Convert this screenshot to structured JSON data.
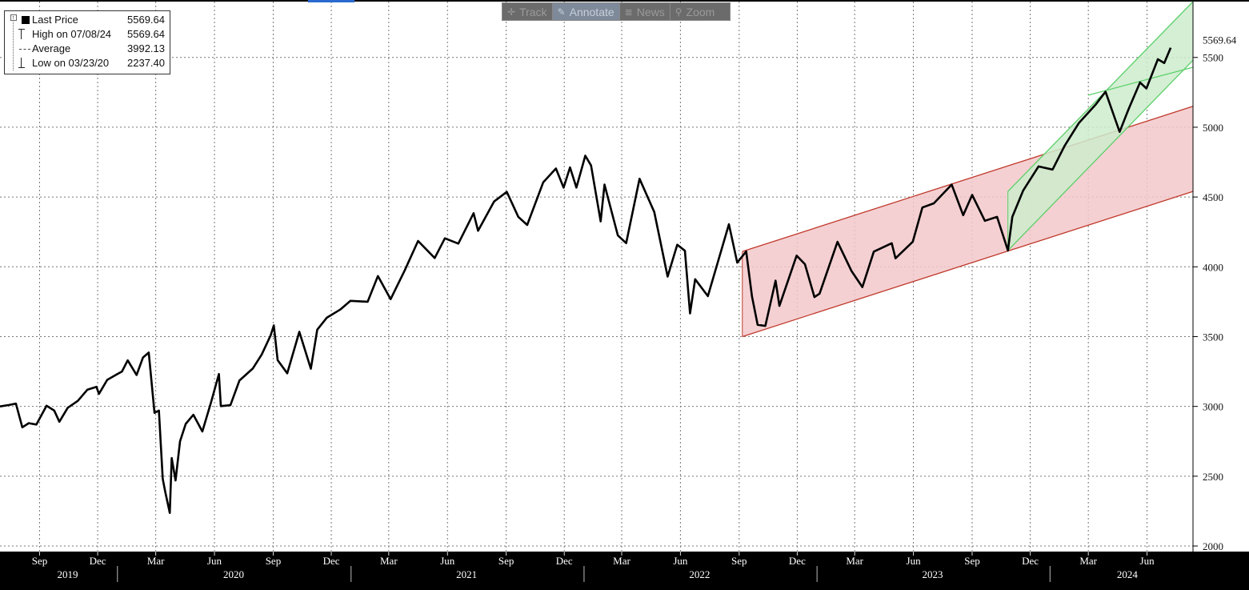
{
  "toolbar": {
    "track": {
      "label": "Track",
      "icon": "crosshair-icon"
    },
    "annotate": {
      "label": "Annotate",
      "icon": "pencil-icon"
    },
    "news": {
      "label": "News",
      "icon": "news-icon"
    },
    "zoom": {
      "label": "Zoom",
      "icon": "magnifier-icon"
    }
  },
  "legend": {
    "last": {
      "label": "Last Price",
      "value": "5569.64"
    },
    "high": {
      "label": "High on 07/08/24",
      "value": "5569.64"
    },
    "average": {
      "label": "Average",
      "value": "3992.13"
    },
    "low": {
      "label": "Low on 03/23/20",
      "value": "2237.40"
    }
  },
  "last_price_tag": "5569.64",
  "chart_data": {
    "type": "line",
    "y_ticks": [
      "2000",
      "2500",
      "3000",
      "3500",
      "4000",
      "4500",
      "5000",
      "5500"
    ],
    "ylim": [
      1960,
      5900
    ],
    "xlim": [
      "2019-07-01",
      "2024-08-12"
    ],
    "grid": true,
    "x_month_ticks": [
      {
        "date": "2019-09-01",
        "label": "Sep"
      },
      {
        "date": "2019-12-01",
        "label": "Dec"
      },
      {
        "date": "2020-03-01",
        "label": "Mar"
      },
      {
        "date": "2020-06-01",
        "label": "Jun"
      },
      {
        "date": "2020-09-01",
        "label": "Sep"
      },
      {
        "date": "2020-12-01",
        "label": "Dec"
      },
      {
        "date": "2021-03-01",
        "label": "Mar"
      },
      {
        "date": "2021-06-01",
        "label": "Jun"
      },
      {
        "date": "2021-09-01",
        "label": "Sep"
      },
      {
        "date": "2021-12-01",
        "label": "Dec"
      },
      {
        "date": "2022-03-01",
        "label": "Mar"
      },
      {
        "date": "2022-06-01",
        "label": "Jun"
      },
      {
        "date": "2022-09-01",
        "label": "Sep"
      },
      {
        "date": "2022-12-01",
        "label": "Dec"
      },
      {
        "date": "2023-03-01",
        "label": "Mar"
      },
      {
        "date": "2023-06-01",
        "label": "Jun"
      },
      {
        "date": "2023-09-01",
        "label": "Sep"
      },
      {
        "date": "2023-12-01",
        "label": "Dec"
      },
      {
        "date": "2024-03-01",
        "label": "Mar"
      },
      {
        "date": "2024-06-01",
        "label": "Jun"
      }
    ],
    "x_year_labels": [
      {
        "date": "2019-10-15",
        "label": "2019"
      },
      {
        "date": "2020-07-01",
        "label": "2020"
      },
      {
        "date": "2021-07-01",
        "label": "2021"
      },
      {
        "date": "2022-07-01",
        "label": "2022"
      },
      {
        "date": "2023-07-01",
        "label": "2023"
      },
      {
        "date": "2024-05-01",
        "label": "2024"
      }
    ],
    "year_separators": [
      "2020-01-01",
      "2021-01-01",
      "2022-01-01",
      "2023-01-01",
      "2024-01-01"
    ],
    "series": [
      {
        "color": "#000000",
        "points": [
          [
            "2019-07-01",
            3000
          ],
          [
            "2019-07-15",
            3010
          ],
          [
            "2019-07-26",
            3020
          ],
          [
            "2019-08-05",
            2850
          ],
          [
            "2019-08-15",
            2880
          ],
          [
            "2019-08-27",
            2870
          ],
          [
            "2019-09-12",
            3005
          ],
          [
            "2019-09-24",
            2970
          ],
          [
            "2019-10-02",
            2890
          ],
          [
            "2019-10-15",
            2990
          ],
          [
            "2019-10-31",
            3040
          ],
          [
            "2019-11-15",
            3120
          ],
          [
            "2019-11-29",
            3140
          ],
          [
            "2019-12-03",
            3090
          ],
          [
            "2019-12-16",
            3190
          ],
          [
            "2019-12-31",
            3230
          ],
          [
            "2020-01-08",
            3250
          ],
          [
            "2020-01-17",
            3330
          ],
          [
            "2020-01-31",
            3225
          ],
          [
            "2020-02-10",
            3350
          ],
          [
            "2020-02-19",
            3386
          ],
          [
            "2020-02-28",
            2954
          ],
          [
            "2020-03-06",
            2970
          ],
          [
            "2020-03-12",
            2480
          ],
          [
            "2020-03-16",
            2386
          ],
          [
            "2020-03-23",
            2237
          ],
          [
            "2020-03-26",
            2630
          ],
          [
            "2020-04-01",
            2470
          ],
          [
            "2020-04-08",
            2750
          ],
          [
            "2020-04-17",
            2875
          ],
          [
            "2020-04-29",
            2940
          ],
          [
            "2020-05-13",
            2820
          ],
          [
            "2020-05-27",
            3036
          ],
          [
            "2020-06-08",
            3232
          ],
          [
            "2020-06-11",
            3002
          ],
          [
            "2020-06-26",
            3009
          ],
          [
            "2020-07-10",
            3185
          ],
          [
            "2020-07-31",
            3271
          ],
          [
            "2020-08-14",
            3372
          ],
          [
            "2020-08-28",
            3508
          ],
          [
            "2020-09-02",
            3580
          ],
          [
            "2020-09-08",
            3331
          ],
          [
            "2020-09-23",
            3237
          ],
          [
            "2020-10-12",
            3534
          ],
          [
            "2020-10-30",
            3270
          ],
          [
            "2020-11-09",
            3550
          ],
          [
            "2020-11-24",
            3635
          ],
          [
            "2020-12-15",
            3694
          ],
          [
            "2020-12-31",
            3756
          ],
          [
            "2021-01-27",
            3750
          ],
          [
            "2021-02-12",
            3934
          ],
          [
            "2021-03-04",
            3768
          ],
          [
            "2021-03-26",
            3974
          ],
          [
            "2021-04-16",
            4185
          ],
          [
            "2021-05-12",
            4063
          ],
          [
            "2021-05-28",
            4204
          ],
          [
            "2021-06-18",
            4166
          ],
          [
            "2021-07-12",
            4384
          ],
          [
            "2021-07-19",
            4258
          ],
          [
            "2021-08-13",
            4468
          ],
          [
            "2021-09-02",
            4537
          ],
          [
            "2021-09-20",
            4358
          ],
          [
            "2021-10-04",
            4300
          ],
          [
            "2021-10-29",
            4605
          ],
          [
            "2021-11-18",
            4704
          ],
          [
            "2021-11-30",
            4567
          ],
          [
            "2021-12-10",
            4712
          ],
          [
            "2021-12-20",
            4568
          ],
          [
            "2022-01-03",
            4796
          ],
          [
            "2022-01-12",
            4726
          ],
          [
            "2022-01-27",
            4326
          ],
          [
            "2022-02-02",
            4589
          ],
          [
            "2022-02-23",
            4225
          ],
          [
            "2022-03-08",
            4170
          ],
          [
            "2022-03-29",
            4631
          ],
          [
            "2022-04-21",
            4393
          ],
          [
            "2022-05-12",
            3930
          ],
          [
            "2022-05-27",
            4158
          ],
          [
            "2022-06-08",
            4115
          ],
          [
            "2022-06-16",
            3666
          ],
          [
            "2022-06-24",
            3911
          ],
          [
            "2022-07-14",
            3790
          ],
          [
            "2022-08-16",
            4305
          ],
          [
            "2022-08-29",
            4030
          ],
          [
            "2022-09-12",
            4110
          ],
          [
            "2022-09-21",
            3789
          ],
          [
            "2022-09-30",
            3585
          ],
          [
            "2022-10-12",
            3577
          ],
          [
            "2022-10-28",
            3901
          ],
          [
            "2022-11-03",
            3720
          ],
          [
            "2022-11-30",
            4080
          ],
          [
            "2022-12-13",
            4019
          ],
          [
            "2022-12-28",
            3783
          ],
          [
            "2023-01-05",
            3808
          ],
          [
            "2023-02-02",
            4179
          ],
          [
            "2023-02-24",
            3970
          ],
          [
            "2023-03-13",
            3855
          ],
          [
            "2023-03-31",
            4109
          ],
          [
            "2023-04-28",
            4169
          ],
          [
            "2023-05-04",
            4061
          ],
          [
            "2023-05-31",
            4180
          ],
          [
            "2023-06-15",
            4425
          ],
          [
            "2023-07-03",
            4455
          ],
          [
            "2023-07-31",
            4589
          ],
          [
            "2023-08-18",
            4370
          ],
          [
            "2023-09-01",
            4515
          ],
          [
            "2023-09-21",
            4330
          ],
          [
            "2023-10-10",
            4358
          ],
          [
            "2023-10-27",
            4117
          ],
          [
            "2023-11-03",
            4358
          ],
          [
            "2023-11-20",
            4547
          ],
          [
            "2023-12-14",
            4719
          ],
          [
            "2024-01-05",
            4697
          ],
          [
            "2024-01-24",
            4868
          ],
          [
            "2024-02-15",
            5029
          ],
          [
            "2024-03-13",
            5165
          ],
          [
            "2024-03-28",
            5254
          ],
          [
            "2024-04-19",
            4967
          ],
          [
            "2024-05-03",
            5128
          ],
          [
            "2024-05-21",
            5321
          ],
          [
            "2024-05-31",
            5278
          ],
          [
            "2024-06-18",
            5487
          ],
          [
            "2024-06-28",
            5460
          ],
          [
            "2024-07-08",
            5569.64
          ]
        ]
      }
    ],
    "channels": [
      {
        "name": "red",
        "fill": "#f2c8ca",
        "fill_opacity": 0.85,
        "stroke": "#c0392b",
        "upper": [
          [
            "2022-09-06",
            4110
          ],
          [
            "2024-08-12",
            5150
          ]
        ],
        "lower": [
          [
            "2022-09-06",
            3500
          ],
          [
            "2024-08-12",
            4540
          ]
        ]
      },
      {
        "name": "green",
        "fill": "#cdeccc",
        "fill_opacity": 0.85,
        "stroke": "#5bd06a",
        "upper": [
          [
            "2023-10-27",
            4540
          ],
          [
            "2024-08-12",
            5900
          ]
        ],
        "lower": [
          [
            "2023-10-27",
            4117
          ],
          [
            "2024-08-12",
            5480
          ]
        ],
        "extra_line": [
          [
            "2024-03-01",
            5230
          ],
          [
            "2024-08-12",
            5430
          ]
        ]
      }
    ],
    "last_price_y": 5569.64
  }
}
